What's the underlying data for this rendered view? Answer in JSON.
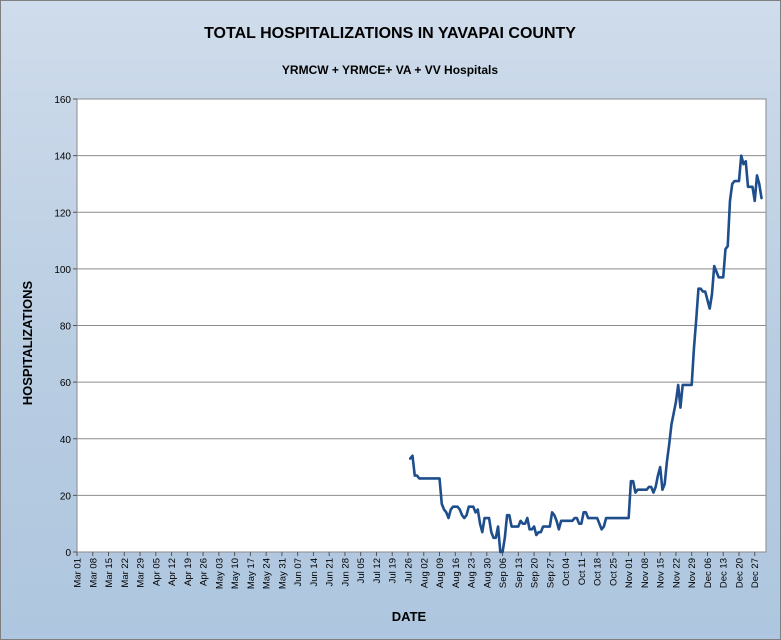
{
  "chart_data": {
    "type": "line",
    "title": "TOTAL HOSPITALIZATIONS IN YAVAPAI COUNTY",
    "subtitle": "YRMCW + YRMCE+ VA + VV Hospitals",
    "xlabel": "DATE",
    "ylabel": "HOSPITALIZATIONS",
    "ylim": [
      0,
      160
    ],
    "yticks": [
      0,
      20,
      40,
      60,
      80,
      100,
      120,
      140,
      160
    ],
    "grid": "horizontal",
    "legend": "none",
    "line_color": "#1f4e8c",
    "xlim": [
      "2020-03-01",
      "2021-01-01"
    ],
    "xtick_labels": [
      "Mar 01",
      "Mar 08",
      "Mar 15",
      "Mar 22",
      "Mar 29",
      "Apr 05",
      "Apr 12",
      "Apr 19",
      "Apr 26",
      "May 03",
      "May 10",
      "May 17",
      "May 24",
      "May 31",
      "Jun 07",
      "Jun 14",
      "Jun 21",
      "Jun 28",
      "Jul 05",
      "Jul 12",
      "Jul 19",
      "Jul 26",
      "Aug 02",
      "Aug 09",
      "Aug 16",
      "Aug 23",
      "Aug 30",
      "Sep 06",
      "Sep 13",
      "Sep 20",
      "Sep 27",
      "Oct 04",
      "Oct 11",
      "Oct 18",
      "Oct 25",
      "Nov 01",
      "Nov 08",
      "Nov 15",
      "Nov 22",
      "Nov 29",
      "Dec 06",
      "Dec 13",
      "Dec 20",
      "Dec 27"
    ],
    "series": [
      {
        "points": [
          [
            "2020-07-27",
            33
          ],
          [
            "2020-07-28",
            34
          ],
          [
            "2020-07-29",
            27
          ],
          [
            "2020-07-30",
            27
          ],
          [
            "2020-07-31",
            26
          ],
          [
            "2020-08-02",
            26
          ],
          [
            "2020-08-04",
            26
          ],
          [
            "2020-08-06",
            26
          ],
          [
            "2020-08-08",
            26
          ],
          [
            "2020-08-09",
            26
          ],
          [
            "2020-08-10",
            17
          ],
          [
            "2020-08-11",
            15
          ],
          [
            "2020-08-12",
            14
          ],
          [
            "2020-08-13",
            12
          ],
          [
            "2020-08-14",
            15
          ],
          [
            "2020-08-15",
            16
          ],
          [
            "2020-08-16",
            16
          ],
          [
            "2020-08-17",
            16
          ],
          [
            "2020-08-18",
            15
          ],
          [
            "2020-08-19",
            13
          ],
          [
            "2020-08-20",
            12
          ],
          [
            "2020-08-21",
            13
          ],
          [
            "2020-08-22",
            16
          ],
          [
            "2020-08-23",
            16
          ],
          [
            "2020-08-24",
            16
          ],
          [
            "2020-08-25",
            14
          ],
          [
            "2020-08-26",
            15
          ],
          [
            "2020-08-27",
            10
          ],
          [
            "2020-08-28",
            7
          ],
          [
            "2020-08-29",
            12
          ],
          [
            "2020-08-30",
            12
          ],
          [
            "2020-08-31",
            12
          ],
          [
            "2020-09-01",
            7
          ],
          [
            "2020-09-02",
            5
          ],
          [
            "2020-09-03",
            5
          ],
          [
            "2020-09-04",
            9
          ],
          [
            "2020-09-05",
            0
          ],
          [
            "2020-09-06",
            0
          ],
          [
            "2020-09-07",
            5
          ],
          [
            "2020-09-08",
            13
          ],
          [
            "2020-09-09",
            13
          ],
          [
            "2020-09-10",
            9
          ],
          [
            "2020-09-11",
            9
          ],
          [
            "2020-09-12",
            9
          ],
          [
            "2020-09-13",
            9
          ],
          [
            "2020-09-14",
            11
          ],
          [
            "2020-09-15",
            10
          ],
          [
            "2020-09-16",
            10
          ],
          [
            "2020-09-17",
            12
          ],
          [
            "2020-09-18",
            8
          ],
          [
            "2020-09-19",
            8
          ],
          [
            "2020-09-20",
            9
          ],
          [
            "2020-09-21",
            6
          ],
          [
            "2020-09-22",
            7
          ],
          [
            "2020-09-23",
            7
          ],
          [
            "2020-09-24",
            9
          ],
          [
            "2020-09-25",
            9
          ],
          [
            "2020-09-26",
            9
          ],
          [
            "2020-09-27",
            9
          ],
          [
            "2020-09-28",
            14
          ],
          [
            "2020-09-29",
            13
          ],
          [
            "2020-09-30",
            11
          ],
          [
            "2020-10-01",
            8
          ],
          [
            "2020-10-02",
            11
          ],
          [
            "2020-10-03",
            11
          ],
          [
            "2020-10-05",
            11
          ],
          [
            "2020-10-07",
            11
          ],
          [
            "2020-10-08",
            12
          ],
          [
            "2020-10-09",
            12
          ],
          [
            "2020-10-10",
            10
          ],
          [
            "2020-10-11",
            10
          ],
          [
            "2020-10-12",
            14
          ],
          [
            "2020-10-13",
            14
          ],
          [
            "2020-10-14",
            12
          ],
          [
            "2020-10-16",
            12
          ],
          [
            "2020-10-18",
            12
          ],
          [
            "2020-10-19",
            10
          ],
          [
            "2020-10-20",
            8
          ],
          [
            "2020-10-21",
            9
          ],
          [
            "2020-10-22",
            12
          ],
          [
            "2020-10-24",
            12
          ],
          [
            "2020-10-26",
            12
          ],
          [
            "2020-10-28",
            12
          ],
          [
            "2020-10-30",
            12
          ],
          [
            "2020-11-01",
            12
          ],
          [
            "2020-11-02",
            25
          ],
          [
            "2020-11-03",
            25
          ],
          [
            "2020-11-04",
            21
          ],
          [
            "2020-11-05",
            22
          ],
          [
            "2020-11-07",
            22
          ],
          [
            "2020-11-09",
            22
          ],
          [
            "2020-11-10",
            23
          ],
          [
            "2020-11-11",
            23
          ],
          [
            "2020-11-12",
            21
          ],
          [
            "2020-11-13",
            23
          ],
          [
            "2020-11-14",
            27
          ],
          [
            "2020-11-15",
            30
          ],
          [
            "2020-11-16",
            22
          ],
          [
            "2020-11-17",
            24
          ],
          [
            "2020-11-18",
            32
          ],
          [
            "2020-11-19",
            38
          ],
          [
            "2020-11-20",
            45
          ],
          [
            "2020-11-21",
            49
          ],
          [
            "2020-11-22",
            53
          ],
          [
            "2020-11-23",
            59
          ],
          [
            "2020-11-24",
            51
          ],
          [
            "2020-11-25",
            59
          ],
          [
            "2020-11-26",
            59
          ],
          [
            "2020-11-27",
            59
          ],
          [
            "2020-11-28",
            59
          ],
          [
            "2020-11-29",
            59
          ],
          [
            "2020-11-30",
            72
          ],
          [
            "2020-12-01",
            82
          ],
          [
            "2020-12-02",
            93
          ],
          [
            "2020-12-03",
            93
          ],
          [
            "2020-12-04",
            92
          ],
          [
            "2020-12-05",
            92
          ],
          [
            "2020-12-06",
            89
          ],
          [
            "2020-12-07",
            86
          ],
          [
            "2020-12-08",
            91
          ],
          [
            "2020-12-09",
            101
          ],
          [
            "2020-12-10",
            99
          ],
          [
            "2020-12-11",
            97
          ],
          [
            "2020-12-12",
            97
          ],
          [
            "2020-12-13",
            97
          ],
          [
            "2020-12-14",
            107
          ],
          [
            "2020-12-15",
            108
          ],
          [
            "2020-12-16",
            124
          ],
          [
            "2020-12-17",
            130
          ],
          [
            "2020-12-18",
            131
          ],
          [
            "2020-12-19",
            131
          ],
          [
            "2020-12-20",
            131
          ],
          [
            "2020-12-21",
            140
          ],
          [
            "2020-12-22",
            137
          ],
          [
            "2020-12-23",
            138
          ],
          [
            "2020-12-24",
            129
          ],
          [
            "2020-12-25",
            129
          ],
          [
            "2020-12-26",
            129
          ],
          [
            "2020-12-27",
            124
          ],
          [
            "2020-12-28",
            133
          ],
          [
            "2020-12-29",
            130
          ],
          [
            "2020-12-30",
            125
          ]
        ]
      }
    ]
  }
}
